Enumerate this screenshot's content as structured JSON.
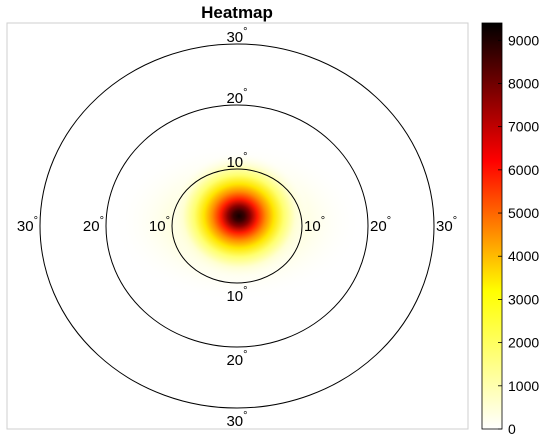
{
  "chart_data": {
    "type": "heatmap",
    "title": "Heatmap",
    "projection": "polar eccentricity rings",
    "rings": [
      10,
      20,
      30
    ],
    "ring_label_suffix": "°",
    "colorbar": {
      "min": 0,
      "max": 9400,
      "ticks": [
        0,
        1000,
        2000,
        3000,
        4000,
        5000,
        6000,
        7000,
        8000,
        9000
      ],
      "colormap": "hot (reversed)",
      "colors": [
        "#ffffff",
        "#ffff00",
        "#ff0000",
        "#000000"
      ]
    },
    "peak": {
      "value": 9400,
      "eccentricity_x": 0,
      "eccentricity_y": 0
    },
    "grid": false,
    "legend": "colorbar-right"
  }
}
